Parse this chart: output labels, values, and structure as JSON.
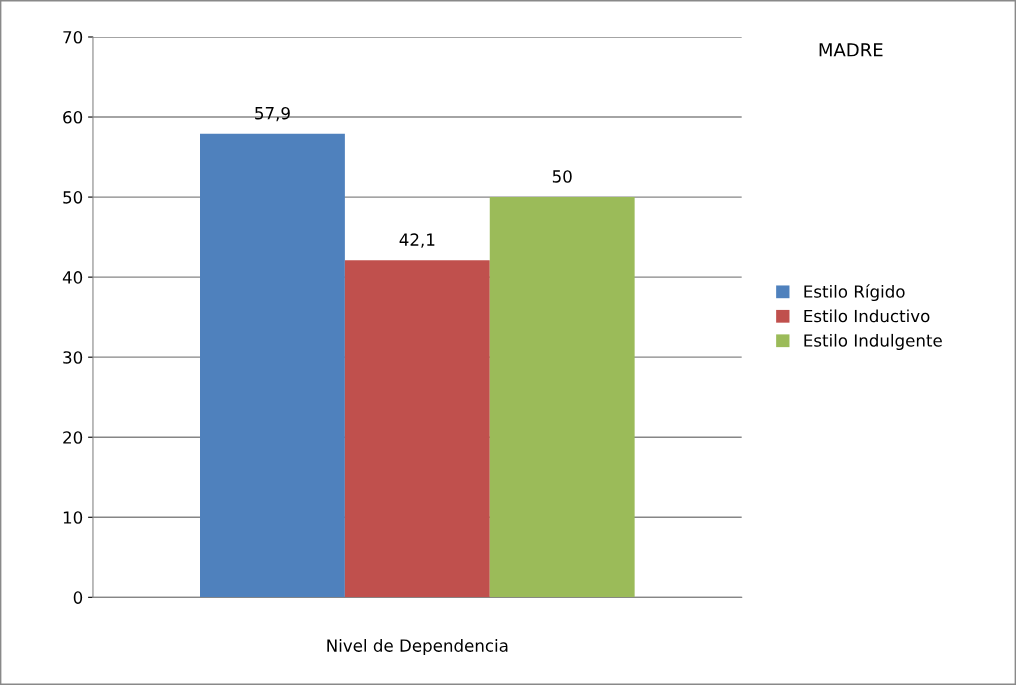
{
  "chart_data": {
    "type": "bar",
    "title": "MADRE",
    "categories": [
      "Nivel de Dependencia"
    ],
    "series": [
      {
        "name": "Estilo Rígido",
        "color": "#4f81bd",
        "values": [
          57.9
        ],
        "value_labels": [
          "57,9"
        ]
      },
      {
        "name": "Estilo Inductivo",
        "color": "#c0504d",
        "values": [
          42.1
        ],
        "value_labels": [
          "42,1"
        ]
      },
      {
        "name": "Estilo Indulgente",
        "color": "#9bbb59",
        "values": [
          50
        ],
        "value_labels": [
          "50"
        ]
      }
    ],
    "ylim": [
      0,
      70
    ],
    "yticks": [
      0,
      10,
      20,
      30,
      40,
      50,
      60,
      70
    ],
    "grid": "y",
    "legend": "right"
  }
}
